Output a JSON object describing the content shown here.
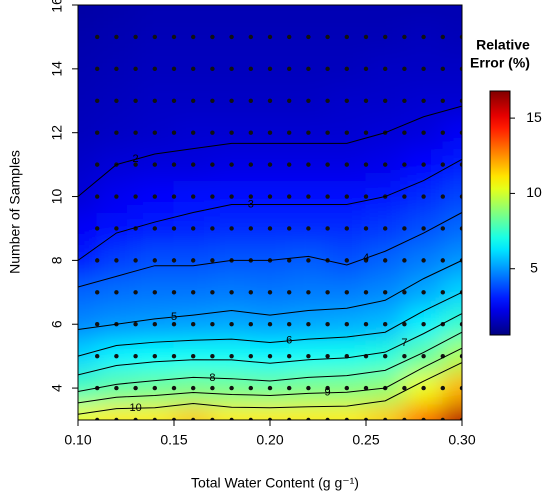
{
  "chart_data": {
    "type": "heatmap",
    "xlabel": "Total Water Content (g g⁻¹)",
    "ylabel": "Number of Samples",
    "colorbar_title": [
      "Relative",
      "Error (%)"
    ],
    "x": [
      0.1,
      0.12,
      0.14,
      0.16,
      0.18,
      0.2,
      0.22,
      0.24,
      0.26,
      0.28,
      0.3
    ],
    "y": [
      3,
      4,
      5,
      6,
      7,
      8,
      9,
      10,
      11,
      12,
      13,
      14,
      15,
      16
    ],
    "z": [
      [
        10.5,
        7.7,
        6.0,
        4.8,
        4.2,
        3.0,
        2.5,
        2.0,
        1.8,
        1.6,
        1.5,
        1.4,
        1.3,
        1.2
      ],
      [
        11,
        8.2,
        6.5,
        5.0,
        4.4,
        3.6,
        2.9,
        2.4,
        2.0,
        1.7,
        1.6,
        1.5,
        1.4,
        1.3
      ],
      [
        11,
        8.4,
        6.7,
        5.1,
        4.5,
        3.9,
        3.1,
        2.6,
        2.1,
        1.8,
        1.7,
        1.6,
        1.5,
        1.4
      ],
      [
        11.5,
        8.6,
        6.8,
        5.2,
        4.5,
        3.9,
        3.2,
        2.8,
        2.1,
        1.9,
        1.7,
        1.6,
        1.5,
        1.4
      ],
      [
        11,
        8.5,
        6.8,
        5.3,
        4.6,
        4.0,
        3.3,
        2.9,
        2.2,
        1.9,
        1.7,
        1.6,
        1.5,
        1.4
      ],
      [
        11,
        8.4,
        6.6,
        5.2,
        4.5,
        4.0,
        3.3,
        2.9,
        2.2,
        1.9,
        1.7,
        1.6,
        1.5,
        1.4
      ],
      [
        11,
        8.6,
        6.8,
        5.3,
        4.6,
        4.1,
        3.3,
        2.9,
        2.2,
        1.9,
        1.7,
        1.6,
        1.5,
        1.4
      ],
      [
        11,
        8.7,
        6.9,
        5.4,
        4.6,
        3.9,
        3.3,
        2.9,
        2.2,
        1.9,
        1.8,
        1.6,
        1.5,
        1.4
      ],
      [
        11.5,
        9.0,
        7.2,
        5.6,
        4.8,
        4.2,
        3.5,
        3.0,
        2.3,
        2.0,
        1.8,
        1.7,
        1.5,
        1.4
      ],
      [
        13,
        10.5,
        8.2,
        6.5,
        5.3,
        4.6,
        3.9,
        3.3,
        2.7,
        2.1,
        1.9,
        1.7,
        1.6,
        1.4
      ],
      [
        16,
        12,
        9.5,
        7.5,
        6.0,
        5.0,
        4.3,
        3.7,
        3.1,
        2.5,
        1.9,
        1.7,
        1.5,
        1.4
      ]
    ],
    "contour_levels": [
      2,
      3,
      4,
      5,
      6,
      7,
      8,
      9,
      10
    ],
    "sample_x": [
      0.11,
      0.12,
      0.13,
      0.14,
      0.15,
      0.16,
      0.17,
      0.18,
      0.19,
      0.2,
      0.21,
      0.22,
      0.23,
      0.24,
      0.25,
      0.26,
      0.27,
      0.28,
      0.29,
      0.3
    ],
    "sample_n": [
      3,
      4,
      5,
      6,
      7,
      8,
      9,
      10,
      11,
      12,
      13,
      14,
      15
    ],
    "xlim": [
      0.1,
      0.3
    ],
    "ylim": [
      3,
      16
    ],
    "xticks": [
      {
        "value": 0.1,
        "label": "0.10"
      },
      0.15,
      {
        "value": 0.2,
        "label": "0.20"
      },
      0.25,
      {
        "value": 0.3,
        "label": "0.30"
      }
    ],
    "yticks": [
      4,
      6,
      8,
      10,
      12,
      14,
      16
    ],
    "clim": [
      0.6,
      16.8
    ],
    "cticks": [
      5,
      10,
      15
    ],
    "colormap": "jet"
  }
}
